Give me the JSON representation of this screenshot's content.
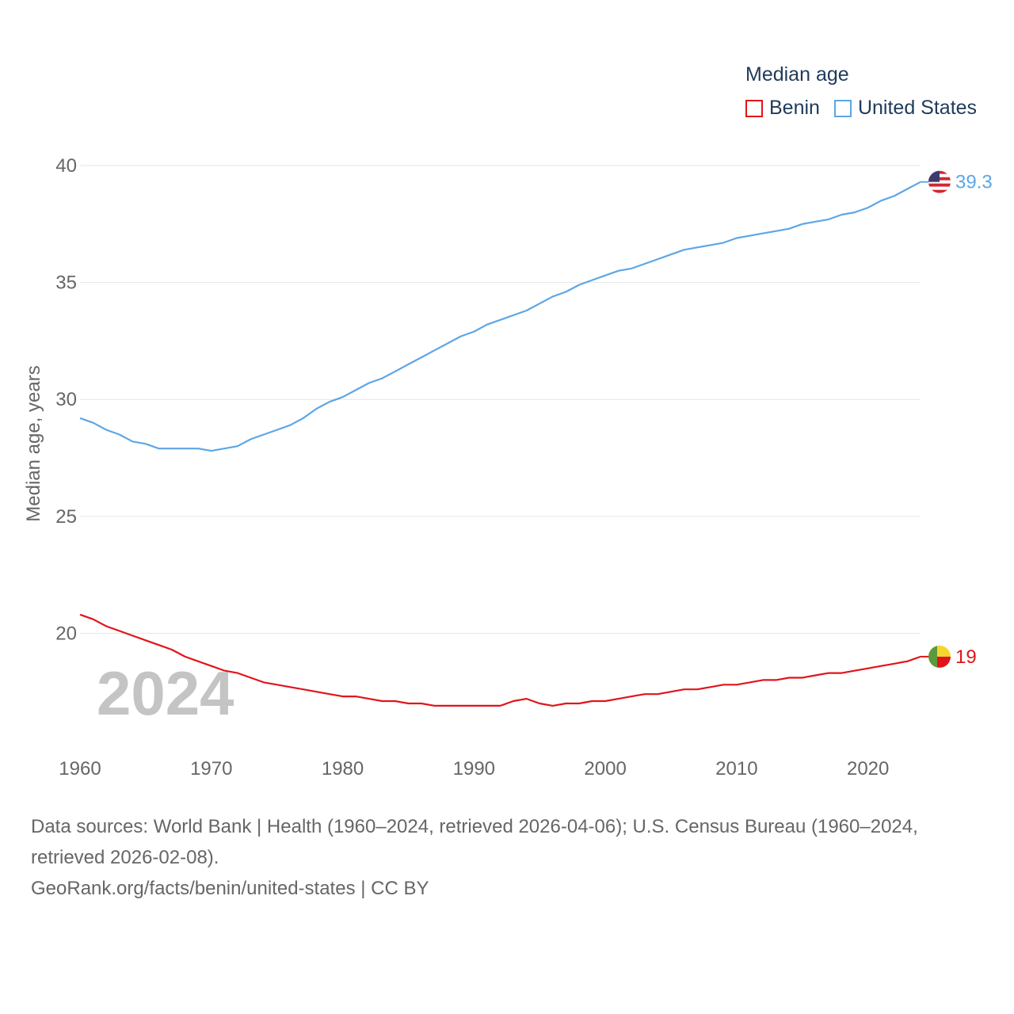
{
  "legend": {
    "title": "Median age",
    "items": [
      {
        "label": "Benin",
        "color": "#e0151b"
      },
      {
        "label": "United States",
        "color": "#5ea6e6"
      }
    ]
  },
  "year_watermark": "2024",
  "footer": {
    "sources": "Data sources: World Bank | Health (1960–2024, retrieved 2026-04-06); U.S. Census Bureau (1960–2024, retrieved 2026-02-08).",
    "credit": "GeoRank.org/facts/benin/united-states | CC BY"
  },
  "chart_data": {
    "type": "line",
    "title": "Median age",
    "xlabel": "",
    "ylabel": "Median age, years",
    "xlim": [
      1960,
      2024
    ],
    "ylim": [
      15,
      40
    ],
    "grid": true,
    "x_ticks": [
      1960,
      1970,
      1980,
      1990,
      2000,
      2010,
      2020
    ],
    "y_ticks": [
      20,
      25,
      30,
      35,
      40
    ],
    "x": [
      1960,
      1961,
      1962,
      1963,
      1964,
      1965,
      1966,
      1967,
      1968,
      1969,
      1970,
      1971,
      1972,
      1973,
      1974,
      1975,
      1976,
      1977,
      1978,
      1979,
      1980,
      1981,
      1982,
      1983,
      1984,
      1985,
      1986,
      1987,
      1988,
      1989,
      1990,
      1991,
      1992,
      1993,
      1994,
      1995,
      1996,
      1997,
      1998,
      1999,
      2000,
      2001,
      2002,
      2003,
      2004,
      2005,
      2006,
      2007,
      2008,
      2009,
      2010,
      2011,
      2012,
      2013,
      2014,
      2015,
      2016,
      2017,
      2018,
      2019,
      2020,
      2021,
      2022,
      2023,
      2024
    ],
    "series": [
      {
        "name": "United States",
        "color": "#5ea6e6",
        "end_label": "39.3",
        "flag": "us-flag",
        "values": [
          29.2,
          29.0,
          28.7,
          28.5,
          28.2,
          28.1,
          27.9,
          27.9,
          27.9,
          27.9,
          27.8,
          27.9,
          28.0,
          28.3,
          28.5,
          28.7,
          28.9,
          29.2,
          29.6,
          29.9,
          30.1,
          30.4,
          30.7,
          30.9,
          31.2,
          31.5,
          31.8,
          32.1,
          32.4,
          32.7,
          32.9,
          33.2,
          33.4,
          33.6,
          33.8,
          34.1,
          34.4,
          34.6,
          34.9,
          35.1,
          35.3,
          35.5,
          35.6,
          35.8,
          36.0,
          36.2,
          36.4,
          36.5,
          36.6,
          36.7,
          36.9,
          37.0,
          37.1,
          37.2,
          37.3,
          37.5,
          37.6,
          37.7,
          37.9,
          38.0,
          38.2,
          38.5,
          38.7,
          39.0,
          39.3
        ]
      },
      {
        "name": "Benin",
        "color": "#e0151b",
        "end_label": "19",
        "flag": "benin-flag",
        "values": [
          20.8,
          20.6,
          20.3,
          20.1,
          19.9,
          19.7,
          19.5,
          19.3,
          19.0,
          18.8,
          18.6,
          18.4,
          18.3,
          18.1,
          17.9,
          17.8,
          17.7,
          17.6,
          17.5,
          17.4,
          17.3,
          17.3,
          17.2,
          17.1,
          17.1,
          17.0,
          17.0,
          16.9,
          16.9,
          16.9,
          16.9,
          16.9,
          16.9,
          17.1,
          17.2,
          17.0,
          16.9,
          17.0,
          17.0,
          17.1,
          17.1,
          17.2,
          17.3,
          17.4,
          17.4,
          17.5,
          17.6,
          17.6,
          17.7,
          17.8,
          17.8,
          17.9,
          18.0,
          18.0,
          18.1,
          18.1,
          18.2,
          18.3,
          18.3,
          18.4,
          18.5,
          18.6,
          18.7,
          18.8,
          19.0
        ]
      }
    ]
  }
}
